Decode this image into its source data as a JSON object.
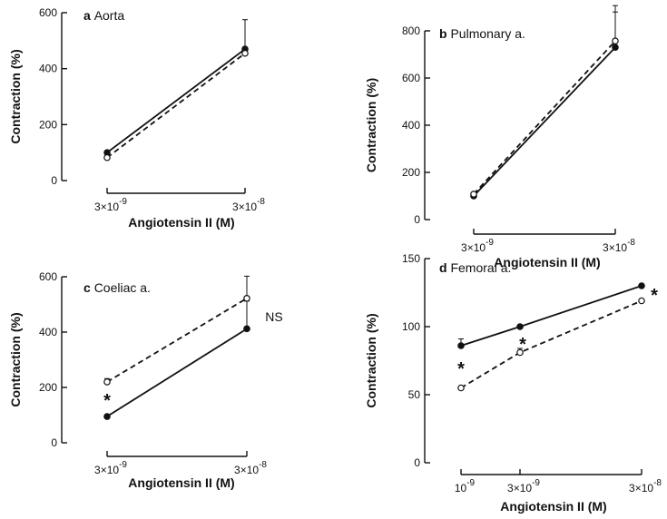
{
  "chart_data": [
    {
      "type": "line",
      "letter": "a",
      "title": "Aorta",
      "ylabel": "Contraction (%)",
      "xlabel": "Angiotensin II (M)",
      "ylim": [
        0,
        600
      ],
      "yticks": [
        0,
        200,
        400,
        600
      ],
      "x_ticks": [
        {
          "base": "3×10",
          "exp": "-9"
        },
        {
          "base": "3×10",
          "exp": "-8"
        }
      ],
      "series": [
        {
          "style": "solid",
          "marker": "filled",
          "values": [
            100,
            470
          ],
          "error": [
            0,
            105
          ]
        },
        {
          "style": "dashed",
          "marker": "open",
          "values": [
            82,
            455
          ],
          "error": [
            0,
            0
          ]
        }
      ],
      "annotations": []
    },
    {
      "type": "line",
      "letter": "b",
      "title": "Pulmonary a.",
      "ylabel": "Contraction (%)",
      "xlabel": "Angiotensin II (M)",
      "ylim": [
        0,
        800
      ],
      "yticks": [
        0,
        200,
        400,
        600,
        800
      ],
      "x_ticks": [
        {
          "base": "3×10",
          "exp": "-9"
        },
        {
          "base": "3×10",
          "exp": "-8"
        }
      ],
      "series": [
        {
          "style": "solid",
          "marker": "filled",
          "values": [
            100,
            730
          ],
          "error": [
            0,
            150
          ]
        },
        {
          "style": "dashed",
          "marker": "open",
          "values": [
            108,
            757
          ],
          "error": [
            0,
            150
          ]
        }
      ],
      "annotations": []
    },
    {
      "type": "line",
      "letter": "c",
      "title": "Coeliac a.",
      "ylabel": "Contraction (%)",
      "xlabel": "Angiotensin II (M)",
      "ylim": [
        0,
        600
      ],
      "yticks": [
        0,
        200,
        400,
        600
      ],
      "x_ticks": [
        {
          "base": "3×10",
          "exp": "-9"
        },
        {
          "base": "3×10",
          "exp": "-8"
        }
      ],
      "series": [
        {
          "style": "solid",
          "marker": "filled",
          "values": [
            95,
            412
          ],
          "error": [
            0,
            100
          ]
        },
        {
          "style": "dashed",
          "marker": "open",
          "values": [
            220,
            522
          ],
          "error": [
            12,
            80
          ]
        }
      ],
      "annotations": [
        {
          "text": "*",
          "x_index": 0,
          "y": 158,
          "dx": 0
        },
        {
          "text": "NS",
          "x_index": 1,
          "y": 465,
          "dx": 30
        }
      ]
    },
    {
      "type": "line",
      "letter": "d",
      "title": "Femoral a.",
      "ylabel": "Contraction (%)",
      "xlabel": "Angiotensin II (M)",
      "ylim": [
        0,
        150
      ],
      "yticks": [
        0,
        50,
        100,
        150
      ],
      "x_ticks": [
        {
          "base": "10",
          "exp": "-9"
        },
        {
          "base": "3×10",
          "exp": "-9"
        },
        {
          "base": "3×10",
          "exp": "-8"
        }
      ],
      "series": [
        {
          "style": "solid",
          "marker": "filled",
          "values": [
            86,
            100,
            130
          ],
          "error": [
            5,
            0,
            0
          ]
        },
        {
          "style": "dashed",
          "marker": "open",
          "values": [
            55,
            81,
            119
          ],
          "error": [
            0,
            3,
            0
          ]
        }
      ],
      "annotations": [
        {
          "text": "*",
          "x_index": 0,
          "y": 70,
          "dx": 0
        },
        {
          "text": "*",
          "x_index": 1,
          "y": 88,
          "dx": 3
        },
        {
          "text": "*",
          "x_index": 2,
          "y": 124,
          "dx": 14
        }
      ]
    }
  ]
}
